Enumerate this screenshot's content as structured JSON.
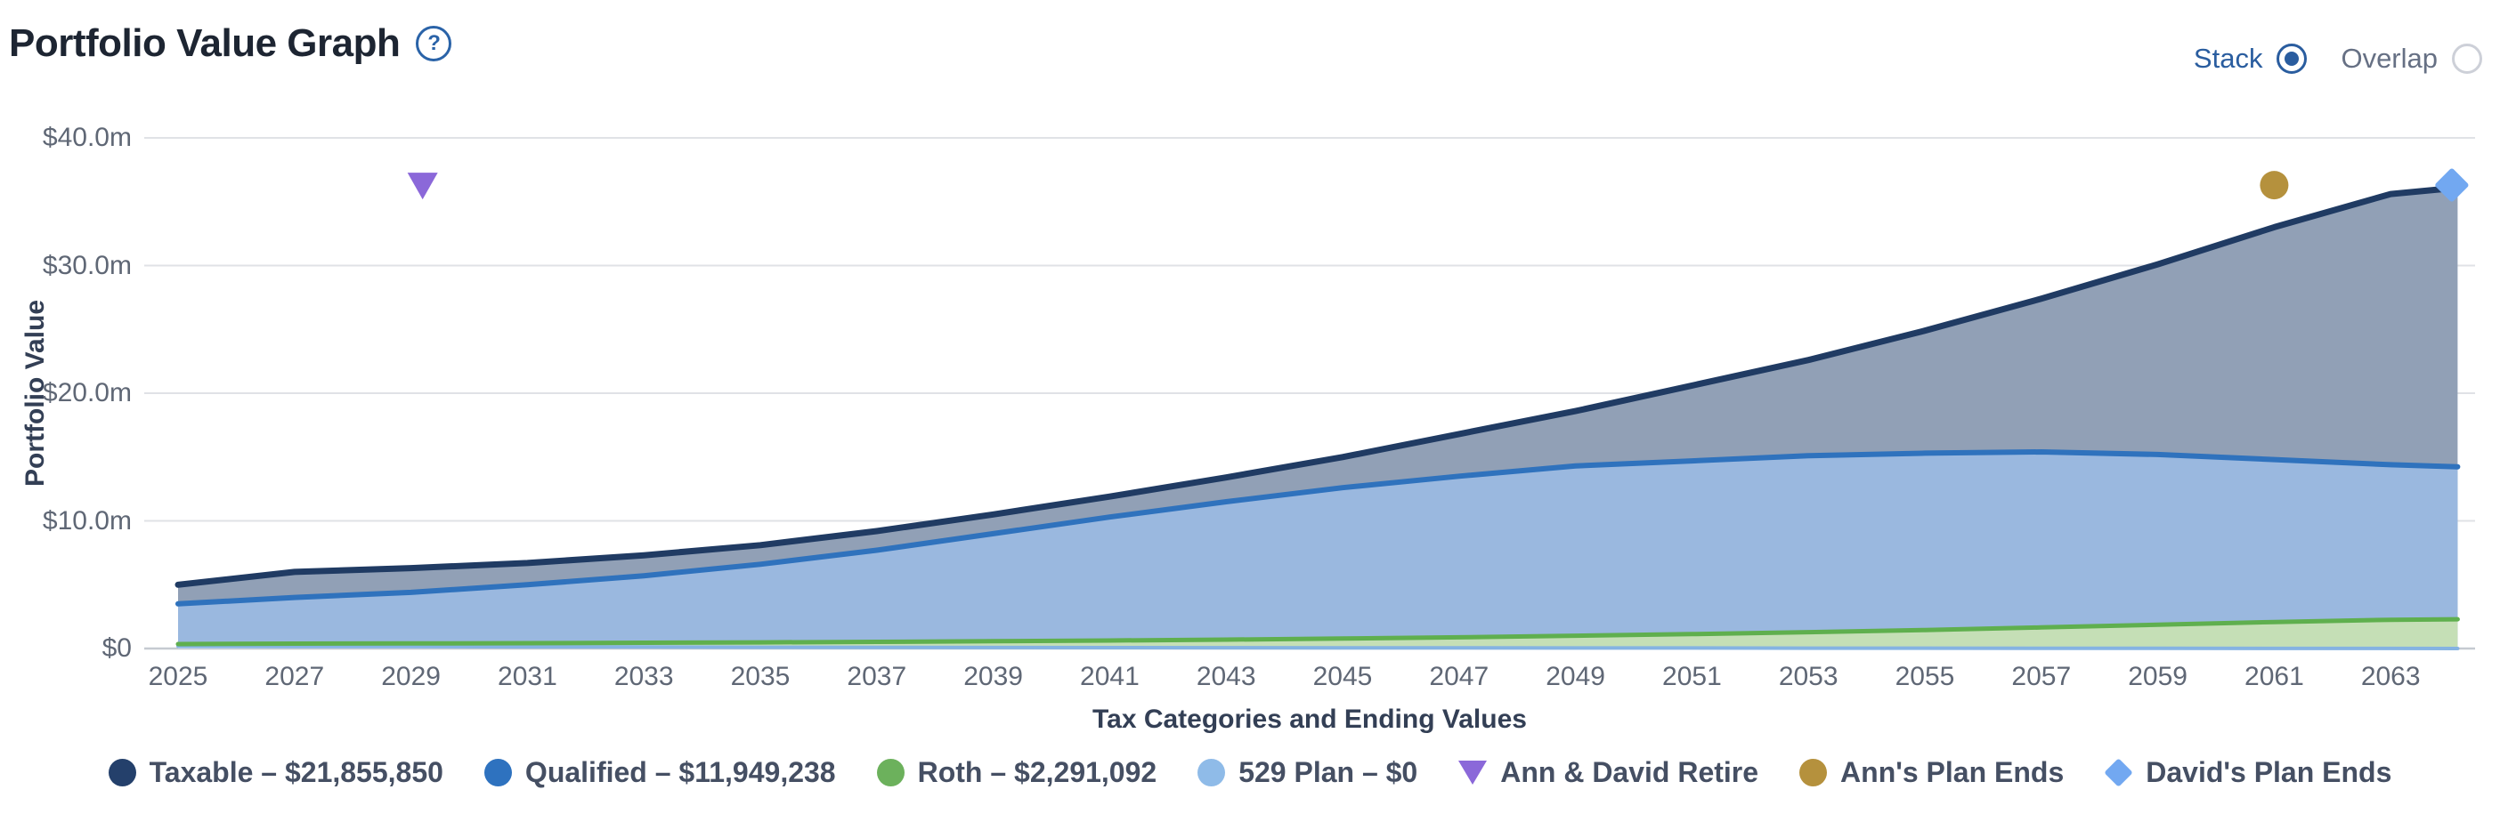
{
  "header": {
    "title": "Portfolio Value Graph",
    "help_glyph": "?",
    "modes": [
      {
        "label": "Stack",
        "selected": true
      },
      {
        "label": "Overlap",
        "selected": false
      }
    ]
  },
  "chart_data": {
    "type": "area",
    "stacked": true,
    "title": "Portfolio Value Graph",
    "xlabel": "Tax Categories and Ending Values",
    "ylabel": "Portfolio Value",
    "units": "USD millions",
    "ylim": [
      0,
      40
    ],
    "xlim": [
      2025,
      2064.15
    ],
    "grid": true,
    "y_ticks": [
      {
        "label": "$0",
        "value": 0
      },
      {
        "label": "$10.0m",
        "value": 10
      },
      {
        "label": "$20.0m",
        "value": 20
      },
      {
        "label": "$30.0m",
        "value": 30
      },
      {
        "label": "$40.0m",
        "value": 40
      }
    ],
    "x_ticks": [
      2025,
      2027,
      2029,
      2031,
      2033,
      2035,
      2037,
      2039,
      2041,
      2043,
      2045,
      2047,
      2049,
      2051,
      2053,
      2055,
      2057,
      2059,
      2061,
      2063
    ],
    "x": [
      2025,
      2027,
      2029,
      2031,
      2033,
      2035,
      2037,
      2039,
      2041,
      2043,
      2045,
      2047,
      2049,
      2051,
      2053,
      2055,
      2057,
      2059,
      2061,
      2063,
      2064.15
    ],
    "series": [
      {
        "name": "529 Plan",
        "ending_value": "$0",
        "line_color": "#85B3E2",
        "fill_color": "#CFE3F5",
        "values": [
          0.18,
          0.16,
          0.15,
          0.13,
          0.12,
          0.1,
          0.09,
          0.08,
          0.07,
          0.06,
          0.05,
          0.05,
          0.04,
          0.04,
          0.03,
          0.03,
          0.02,
          0.02,
          0.01,
          0.01,
          0
        ]
      },
      {
        "name": "Roth",
        "ending_value": "$2,291,092",
        "line_color": "#5FAF4E",
        "fill_color": "#C5DFB6",
        "values": [
          0.17,
          0.22,
          0.25,
          0.29,
          0.33,
          0.38,
          0.43,
          0.49,
          0.56,
          0.64,
          0.73,
          0.83,
          0.96,
          1.09,
          1.25,
          1.42,
          1.63,
          1.84,
          2.07,
          2.24,
          2.29
        ]
      },
      {
        "name": "Qualified",
        "ending_value": "$11,949,238",
        "line_color": "#2F72BD",
        "fill_color": "#9AB8DF",
        "values": [
          3.15,
          3.62,
          4.0,
          4.58,
          5.25,
          6.12,
          7.18,
          8.43,
          9.67,
          10.8,
          11.82,
          12.62,
          13.3,
          13.57,
          13.82,
          13.85,
          13.75,
          13.34,
          12.72,
          12.15,
          11.95
        ]
      },
      {
        "name": "Taxable",
        "ending_value": "$21,855,850",
        "line_color": "#203B63",
        "fill_color": "#91A0B6",
        "values": [
          1.5,
          2.0,
          1.9,
          1.7,
          1.6,
          1.5,
          1.5,
          1.5,
          1.6,
          1.9,
          2.4,
          3.3,
          4.3,
          5.9,
          7.5,
          9.6,
          12.0,
          14.9,
          18.2,
          21.2,
          21.86
        ]
      }
    ],
    "events": [
      {
        "label": "Ann & David Retire",
        "marker": "triangle-down",
        "color": "#8B68D9",
        "year": 2029.2
      },
      {
        "label": "Ann's Plan Ends",
        "marker": "circle",
        "color": "#B5913D",
        "year": 2061
      },
      {
        "label": "David's Plan Ends",
        "marker": "diamond",
        "color": "#72A8F1",
        "year": 2064.05
      }
    ],
    "event_marker_value": 36.3,
    "legend_position": "bottom"
  },
  "legend": {
    "items": [
      {
        "marker": "circle",
        "color": "#24406B",
        "label": "Taxable – $21,855,850"
      },
      {
        "marker": "circle",
        "color": "#2E72BF",
        "label": "Qualified – $11,949,238"
      },
      {
        "marker": "circle",
        "color": "#6CB15C",
        "label": "Roth – $2,291,092"
      },
      {
        "marker": "circle",
        "color": "#8FBBE8",
        "label": "529 Plan – $0"
      },
      {
        "marker": "triangle-down",
        "color": "#8B68D9",
        "label": "Ann & David Retire"
      },
      {
        "marker": "circle",
        "color": "#B5913D",
        "label": "Ann's Plan Ends"
      },
      {
        "marker": "diamond",
        "color": "#72A8F1",
        "label": "David's Plan Ends"
      }
    ]
  }
}
